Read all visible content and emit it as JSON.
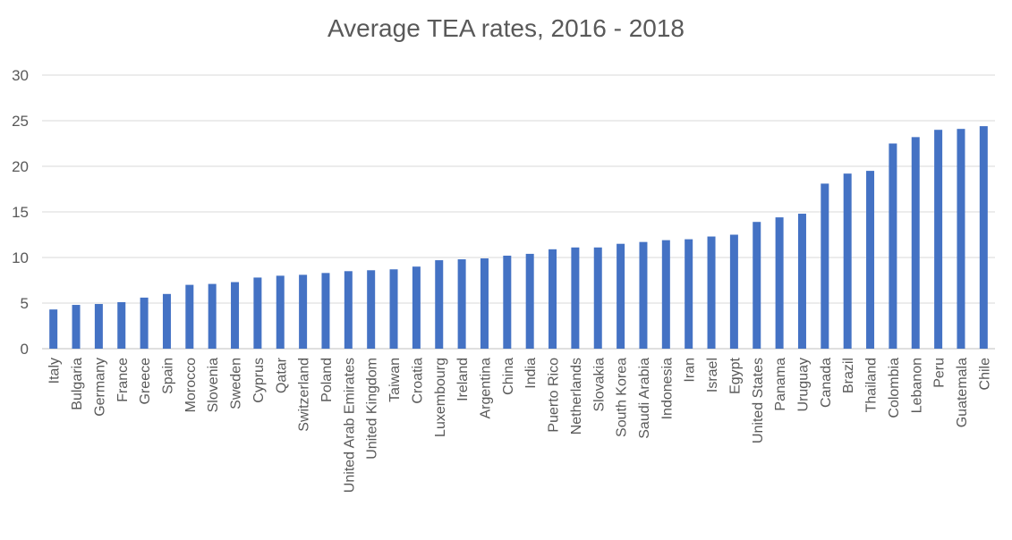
{
  "chart_data": {
    "type": "bar",
    "title": "Average TEA rates, 2016 - 2018",
    "xlabel": "",
    "ylabel": "",
    "ylim": [
      0,
      30
    ],
    "yticks": [
      0,
      5,
      10,
      15,
      20,
      25,
      30
    ],
    "grid": true,
    "bar_color": "#4472C4",
    "categories": [
      "Italy",
      "Bulgaria",
      "Germany",
      "France",
      "Greece",
      "Spain",
      "Morocco",
      "Slovenia",
      "Sweden",
      "Cyprus",
      "Qatar",
      "Switzerland",
      "Poland",
      "United Arab Emirates",
      "United Kingdom",
      "Taiwan",
      "Croatia",
      "Luxembourg",
      "Ireland",
      "Argentina",
      "China",
      "India",
      "Puerto Rico",
      "Netherlands",
      "Slovakia",
      "South Korea",
      "Saudi Arabia",
      "Indonesia",
      "Iran",
      "Israel",
      "Egypt",
      "United States",
      "Panama",
      "Uruguay",
      "Canada",
      "Brazil",
      "Thailand",
      "Colombia",
      "Lebanon",
      "Peru",
      "Guatemala",
      "Chile"
    ],
    "values": [
      4.3,
      4.8,
      4.9,
      5.1,
      5.6,
      6.0,
      7.0,
      7.1,
      7.3,
      7.8,
      8.0,
      8.1,
      8.3,
      8.5,
      8.6,
      8.7,
      9.0,
      9.7,
      9.8,
      9.9,
      10.2,
      10.4,
      10.9,
      11.1,
      11.1,
      11.5,
      11.7,
      11.9,
      12.0,
      12.3,
      12.5,
      13.9,
      14.4,
      14.8,
      18.1,
      19.2,
      19.5,
      22.5,
      23.2,
      24.0,
      24.1,
      24.4
    ]
  }
}
